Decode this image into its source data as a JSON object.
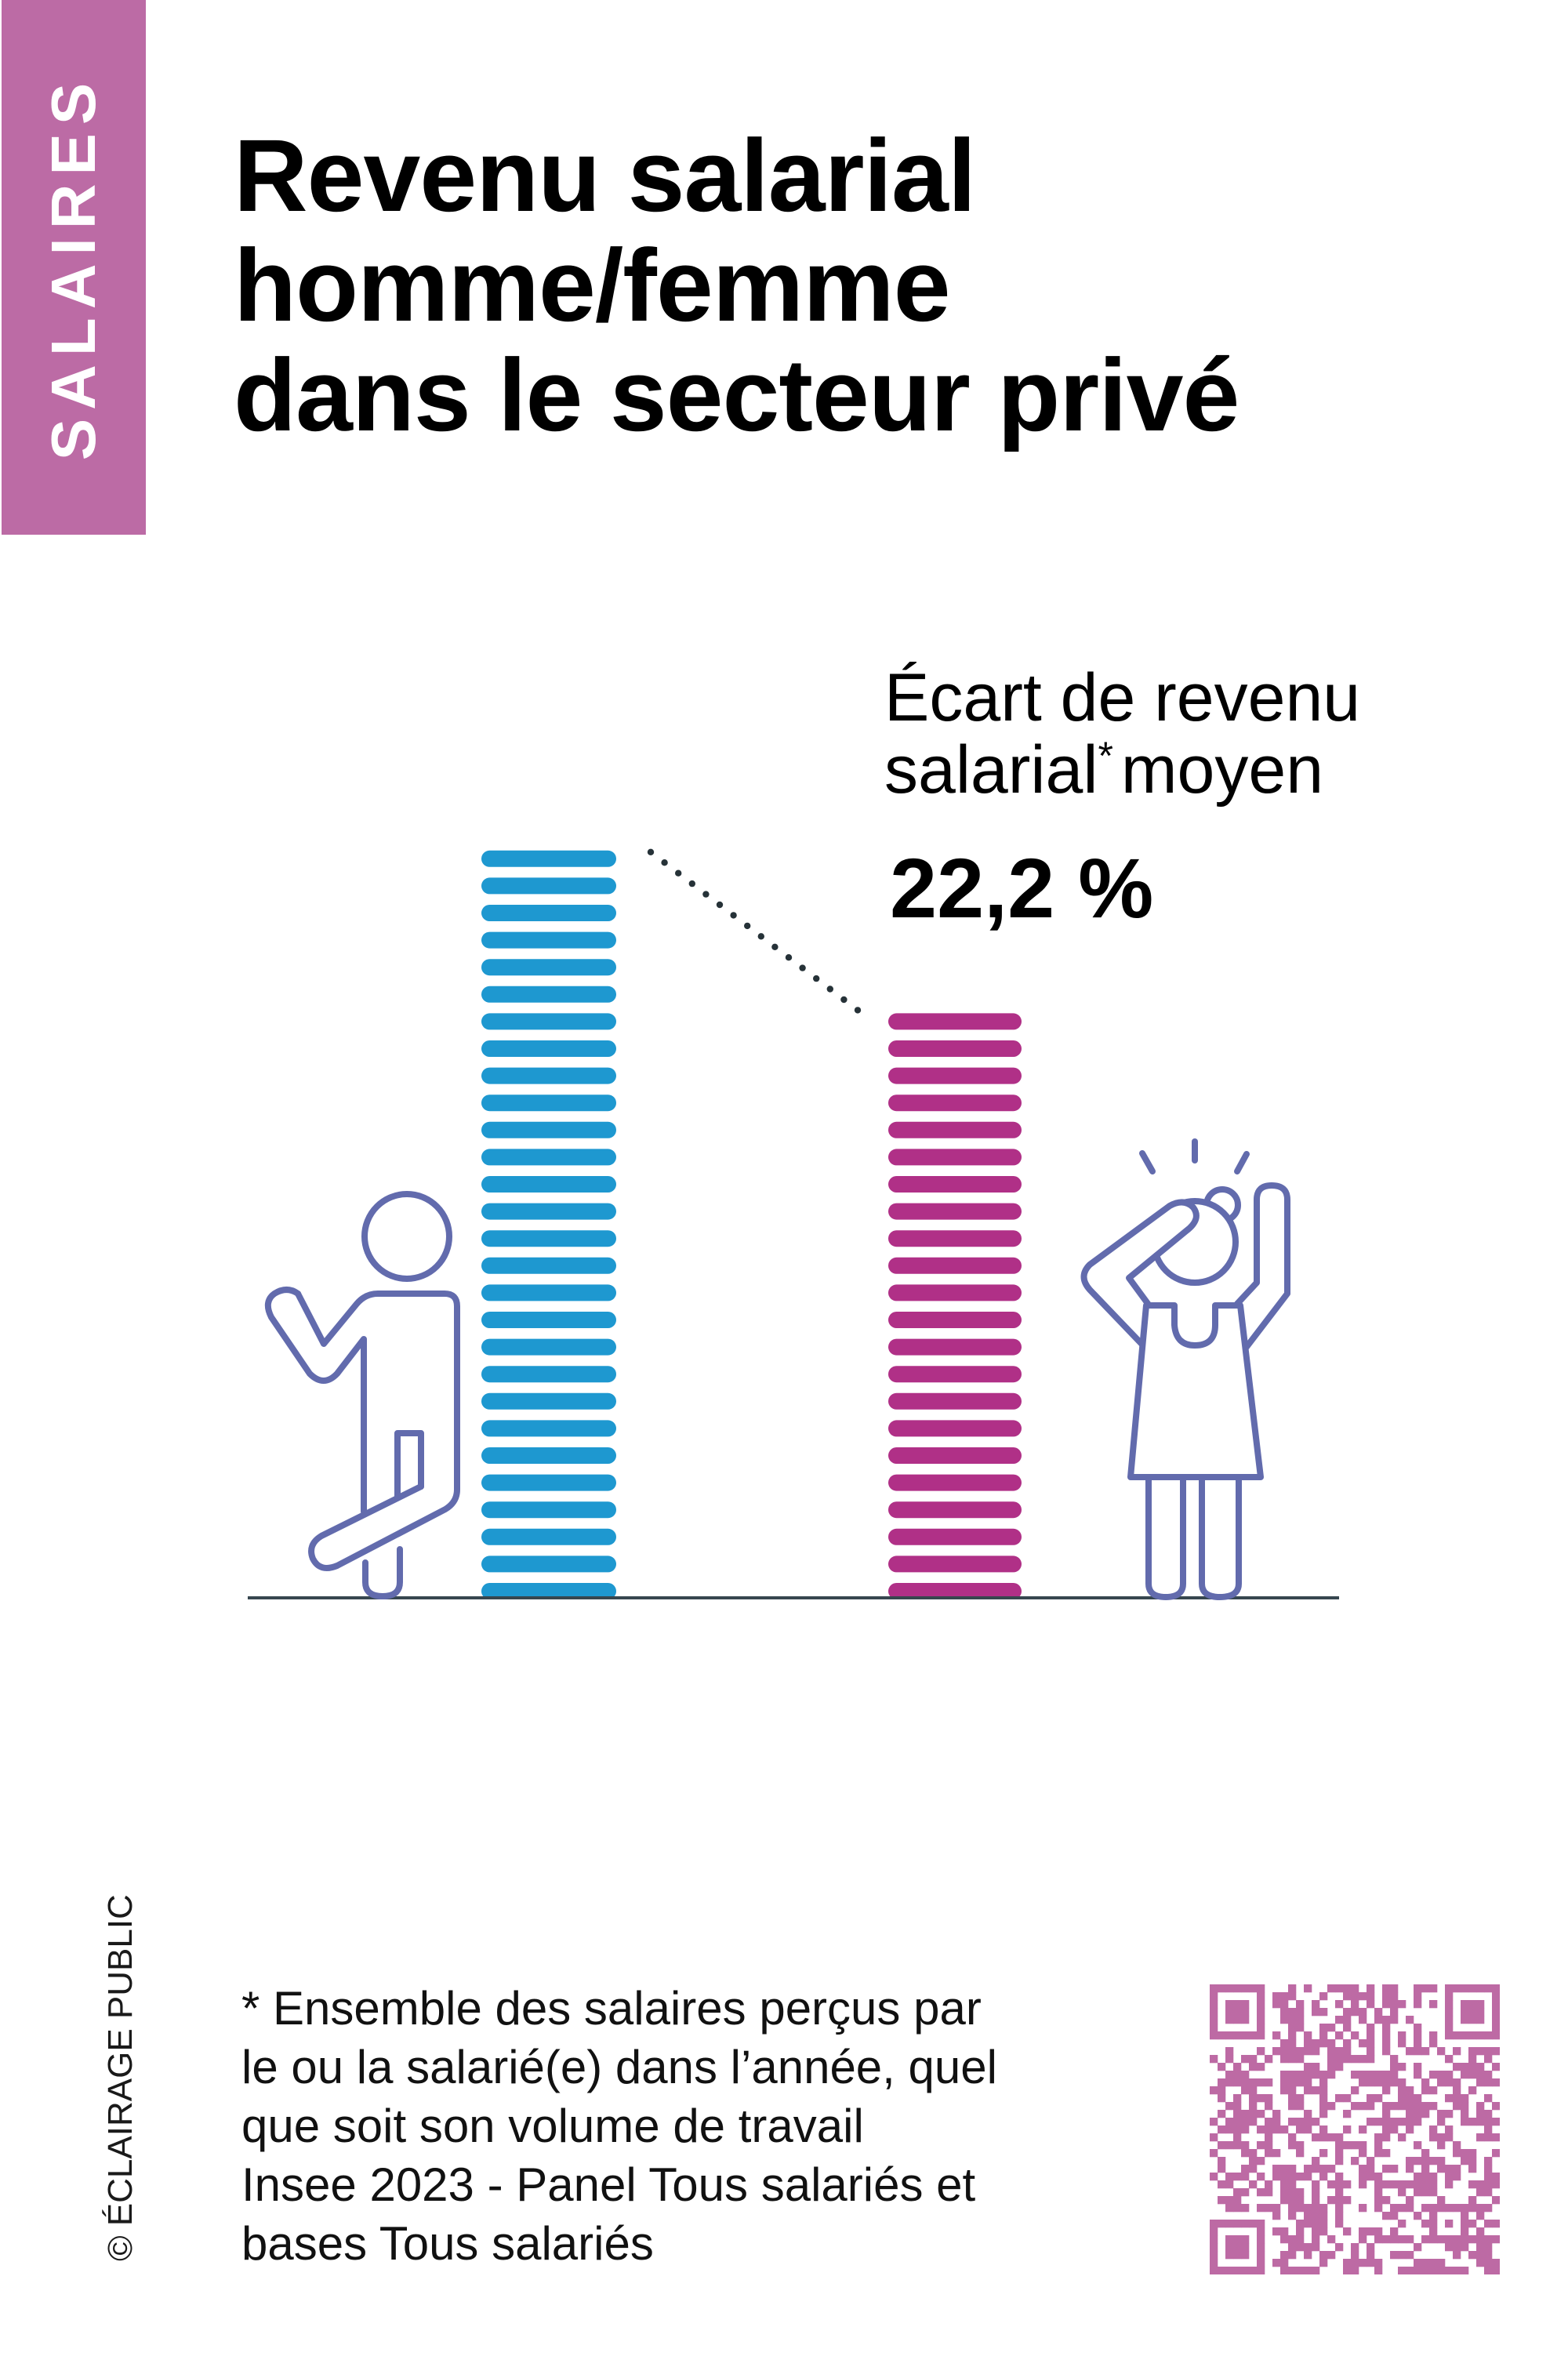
{
  "tab": {
    "label": "SALAIRES"
  },
  "title": {
    "lines": [
      "Revenu salarial",
      "homme/femme",
      "dans le secteur privé"
    ]
  },
  "stat": {
    "label_line1": "Écart de revenu",
    "label_line2_word": "salarial",
    "label_line2_sup": "*",
    "label_line2_rest": "moyen",
    "value": "22,2 %"
  },
  "footnote": {
    "lines": [
      "* Ensemble des salaires perçus par",
      "le ou la salarié(e) dans l’année, quel",
      "que soit son volume de travail",
      "Insee 2023 - Panel Tous salariés et",
      "bases Tous salariés"
    ]
  },
  "copyright": "© ÉCLAIRAGE PUBLIC",
  "icons": {
    "man": "man-figure-icon",
    "woman": "surprised-woman-figure-icon",
    "qr": "qr-code"
  },
  "colors": {
    "tab": "#bc6ba5",
    "men_bar": "#1e98d0",
    "women_bar": "#b03087",
    "figure_stroke": "#626bad",
    "connector": "#263238",
    "baseline": "#37474f",
    "qr": "#bd6aa4"
  },
  "chart_data": {
    "type": "bar",
    "title": "Revenu salarial homme/femme dans le secteur privé",
    "categories": [
      "Homme",
      "Femme"
    ],
    "values": [
      100,
      77.8
    ],
    "value_unit": "indice (revenu salarial moyen des hommes = 100)",
    "annotation": {
      "label": "Écart de revenu salarial* moyen",
      "value": "22,2 %",
      "gap_percent": 22.2
    },
    "xlabel": "",
    "ylabel": "",
    "grid": false,
    "legend": "none",
    "source": "Insee 2023 - Panel Tous salariés et bases Tous salariés"
  }
}
